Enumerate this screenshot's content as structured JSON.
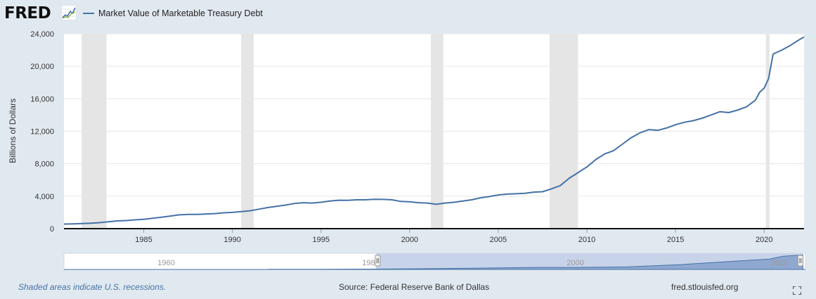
{
  "header": {
    "logo_text": "FRED",
    "logo_graph_icon": "fred-graph-icon",
    "legend_label": "Market Value of Marketable Treasury Debt",
    "series_color": "#4572a7"
  },
  "footer": {
    "note": "Shaded areas indicate U.S. recessions.",
    "source": "Source: Federal Reserve Bank of Dallas",
    "site": "fred.stlouisfed.org",
    "fullscreen_icon": "fullscreen-icon"
  },
  "chart_data": {
    "type": "line",
    "title": "",
    "xlabel": "",
    "ylabel": "Billions of Dollars",
    "xlim": [
      1980.5,
      2022.25
    ],
    "ylim": [
      0,
      24000
    ],
    "xticks": [
      1985,
      1990,
      1995,
      2000,
      2005,
      2010,
      2015,
      2020
    ],
    "yticks": [
      0,
      4000,
      8000,
      12000,
      16000,
      20000,
      24000
    ],
    "ytick_labels": [
      "0",
      "4,000",
      "8,000",
      "12,000",
      "16,000",
      "20,000",
      "24,000"
    ],
    "grid": "horizontal",
    "recessions": [
      [
        1981.5,
        1982.9
      ],
      [
        1990.5,
        1991.2
      ],
      [
        2001.2,
        2001.9
      ],
      [
        2007.9,
        2009.5
      ],
      [
        2020.1,
        2020.3
      ]
    ],
    "series": [
      {
        "name": "Market Value of Marketable Treasury Debt",
        "color": "#4572a7",
        "x": [
          1980.5,
          1981.0,
          1981.5,
          1982.0,
          1982.5,
          1983.0,
          1983.5,
          1984.0,
          1984.5,
          1985.0,
          1985.5,
          1986.0,
          1986.5,
          1987.0,
          1987.5,
          1988.0,
          1988.5,
          1989.0,
          1989.5,
          1990.0,
          1990.5,
          1991.0,
          1991.5,
          1992.0,
          1992.5,
          1993.0,
          1993.5,
          1994.0,
          1994.5,
          1995.0,
          1995.5,
          1996.0,
          1996.5,
          1997.0,
          1997.5,
          1998.0,
          1998.5,
          1999.0,
          1999.5,
          2000.0,
          2000.5,
          2001.0,
          2001.5,
          2002.0,
          2002.5,
          2003.0,
          2003.5,
          2004.0,
          2004.5,
          2005.0,
          2005.5,
          2006.0,
          2006.5,
          2007.0,
          2007.5,
          2008.0,
          2008.5,
          2009.0,
          2009.5,
          2010.0,
          2010.5,
          2011.0,
          2011.5,
          2012.0,
          2012.5,
          2013.0,
          2013.5,
          2014.0,
          2014.5,
          2015.0,
          2015.5,
          2016.0,
          2016.5,
          2017.0,
          2017.5,
          2018.0,
          2018.5,
          2019.0,
          2019.5,
          2019.75,
          2020.0,
          2020.25,
          2020.5,
          2021.0,
          2021.5,
          2022.0,
          2022.25
        ],
        "values": [
          560,
          590,
          630,
          670,
          740,
          850,
          950,
          1000,
          1080,
          1150,
          1270,
          1400,
          1550,
          1700,
          1750,
          1750,
          1800,
          1850,
          1950,
          2000,
          2100,
          2200,
          2400,
          2600,
          2750,
          2900,
          3100,
          3200,
          3150,
          3250,
          3400,
          3500,
          3480,
          3550,
          3550,
          3620,
          3600,
          3550,
          3350,
          3300,
          3200,
          3150,
          3000,
          3150,
          3250,
          3400,
          3550,
          3800,
          3950,
          4150,
          4250,
          4300,
          4350,
          4500,
          4550,
          4900,
          5300,
          6200,
          6900,
          7600,
          8500,
          9200,
          9600,
          10400,
          11200,
          11800,
          12200,
          12100,
          12400,
          12800,
          13100,
          13300,
          13600,
          14000,
          14400,
          14300,
          14600,
          15000,
          15800,
          16800,
          17300,
          18500,
          21500,
          22000,
          22600,
          23300,
          23600
        ]
      }
    ],
    "navigator": {
      "ticks": [
        1960,
        1980,
        2000,
        2020
      ],
      "tick_labels": [
        "1960",
        "1980",
        "2000",
        "2020"
      ],
      "xlim": [
        1950,
        2022.5
      ],
      "selected": [
        1980.5,
        2022.25
      ],
      "series_x": [
        1970,
        1975,
        1980,
        1985,
        1990,
        1995,
        2000,
        2005,
        2010,
        2015,
        2019,
        2020.3,
        2022.25
      ],
      "series_values": [
        200,
        300,
        560,
        1150,
        2000,
        3250,
        3300,
        4150,
        7600,
        12800,
        16800,
        21500,
        23600
      ]
    }
  }
}
